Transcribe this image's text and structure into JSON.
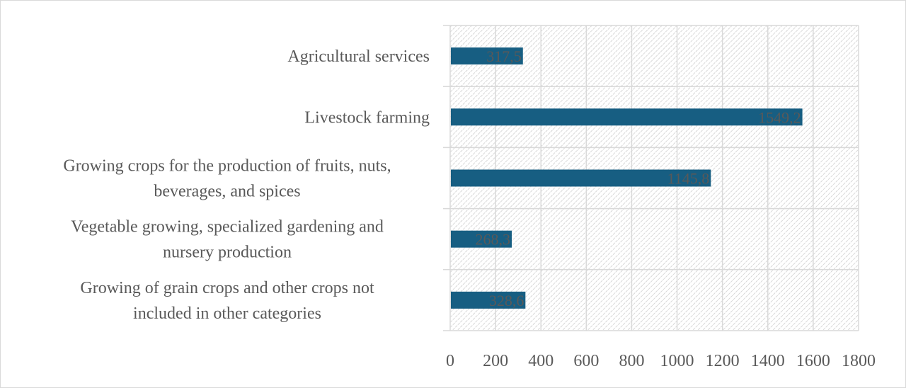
{
  "chart_data": {
    "type": "bar",
    "orientation": "horizontal",
    "categories": [
      [
        "Agricultural services"
      ],
      [
        "Livestock farming"
      ],
      [
        "Growing crops for the production of fruits, nuts,",
        "beverages, and spices"
      ],
      [
        "Vegetable growing, specialized gardening and",
        "nursery production"
      ],
      [
        "Growing of grain crops and other crops not",
        "included in other categories"
      ]
    ],
    "values": [
      317.5,
      1549.2,
      1145.8,
      268.3,
      328.6
    ],
    "data_labels": [
      "317,5",
      "1549,2",
      "1145,8",
      "268,3",
      "328,6"
    ],
    "xlim": [
      0,
      1800
    ],
    "x_ticks": [
      "0",
      "200",
      "400",
      "600",
      "800",
      "1000",
      "1200",
      "1400",
      "1600",
      "1800"
    ],
    "title": "",
    "xlabel": "",
    "ylabel": "",
    "grid": true,
    "plot_background": "diagonal-hatch",
    "legend": "none",
    "colors": {
      "bar": "#175E82",
      "text": "#595959",
      "grid": "#d9d9d9"
    }
  }
}
